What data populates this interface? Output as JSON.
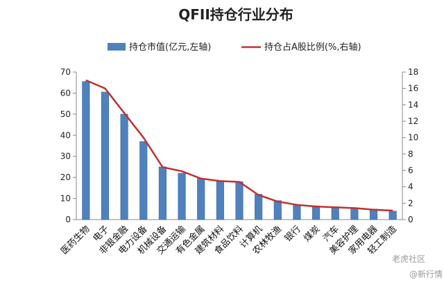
{
  "chart_data": {
    "type": "bar",
    "title": "QFII持仓行业分布",
    "categories": [
      "医药生物",
      "电子",
      "非银金融",
      "电力设备",
      "机械设备",
      "交通运输",
      "有色金属",
      "建筑材料",
      "食品饮料",
      "计算机",
      "农林牧渔",
      "银行",
      "煤炭",
      "汽车",
      "美容护理",
      "家用电器",
      "轻工制造"
    ],
    "series": [
      {
        "name": "持仓市值(亿元,左轴)",
        "type": "bar",
        "axis": "left",
        "values": [
          65.5,
          60.5,
          50,
          37,
          25,
          22,
          19.5,
          18,
          18,
          12,
          9,
          7,
          6.5,
          6,
          5.5,
          5,
          4
        ]
      },
      {
        "name": "持仓占A股比例(%,右轴)",
        "type": "line",
        "axis": "right",
        "values": [
          17,
          16,
          13,
          10,
          6.4,
          5.9,
          5.0,
          4.7,
          4.6,
          3.0,
          2.2,
          1.8,
          1.6,
          1.5,
          1.4,
          1.2,
          1.1
        ]
      }
    ],
    "ylim_left": [
      0,
      70
    ],
    "yticks_left": [
      0,
      10,
      20,
      30,
      40,
      50,
      60,
      70
    ],
    "ylim_right": [
      0,
      18
    ],
    "yticks_right": [
      0,
      2,
      4,
      6,
      8,
      10,
      12,
      14,
      16,
      18
    ],
    "legend": "top",
    "grid": false,
    "colors": {
      "bar": "#4f81bd",
      "bar_edge": "#3a679c",
      "line": "#c0312f"
    }
  },
  "watermark": {
    "main": "老虎社区",
    "sub": "@新行情"
  }
}
